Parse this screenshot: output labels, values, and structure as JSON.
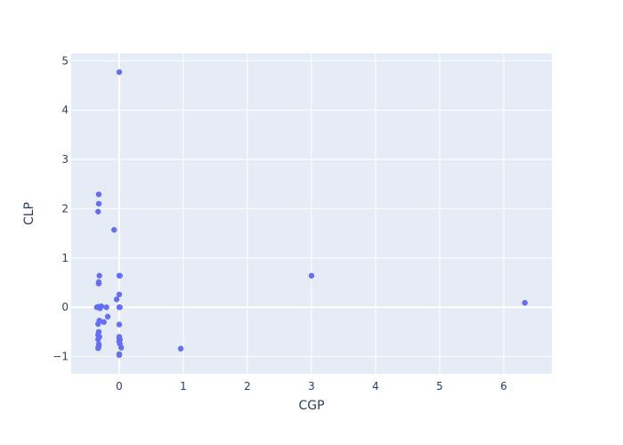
{
  "chart_data": {
    "type": "scatter",
    "xlabel": "CGP",
    "ylabel": "CLP",
    "xlim": [
      -0.75,
      6.75
    ],
    "ylim": [
      -1.35,
      5.15
    ],
    "x_ticks": [
      0,
      1,
      2,
      3,
      4,
      5,
      6
    ],
    "y_ticks": [
      -1,
      0,
      1,
      2,
      3,
      4,
      5
    ],
    "x_tick_labels": [
      "0",
      "1",
      "2",
      "3",
      "4",
      "5",
      "6"
    ],
    "y_tick_labels": [
      "−1",
      "0",
      "1",
      "2",
      "3",
      "4",
      "5"
    ],
    "grid": true,
    "colors": {
      "plot_bg": "#e5ecf6",
      "grid": "#ffffff",
      "marker": "#636efa",
      "text": "#2a3f5f"
    },
    "series": [
      {
        "points": [
          {
            "x": 0.0,
            "y": 4.77
          },
          {
            "x": -0.32,
            "y": 2.29
          },
          {
            "x": -0.32,
            "y": 2.1
          },
          {
            "x": -0.33,
            "y": 1.94
          },
          {
            "x": -0.08,
            "y": 1.57
          },
          {
            "x": -0.31,
            "y": 0.64
          },
          {
            "x": -0.32,
            "y": 0.51
          },
          {
            "x": -0.32,
            "y": 0.48
          },
          {
            "x": 0.0,
            "y": 0.64
          },
          {
            "x": 0.01,
            "y": 0.64
          },
          {
            "x": 0.0,
            "y": 0.26
          },
          {
            "x": -0.04,
            "y": 0.16
          },
          {
            "x": -0.33,
            "y": 0.01
          },
          {
            "x": -0.35,
            "y": 0.0
          },
          {
            "x": -0.3,
            "y": -0.02
          },
          {
            "x": -0.28,
            "y": 0.02
          },
          {
            "x": -0.2,
            "y": 0.0
          },
          {
            "x": 0.0,
            "y": 0.0
          },
          {
            "x": 0.01,
            "y": 0.0
          },
          {
            "x": -0.18,
            "y": -0.19
          },
          {
            "x": -0.31,
            "y": -0.27
          },
          {
            "x": -0.24,
            "y": -0.3
          },
          {
            "x": -0.33,
            "y": -0.34
          },
          {
            "x": 0.0,
            "y": -0.35
          },
          {
            "x": -0.32,
            "y": -0.5
          },
          {
            "x": -0.33,
            "y": -0.56
          },
          {
            "x": -0.31,
            "y": -0.6
          },
          {
            "x": -0.33,
            "y": -0.65
          },
          {
            "x": 0.0,
            "y": -0.6
          },
          {
            "x": 0.0,
            "y": -0.64
          },
          {
            "x": 0.01,
            "y": -0.66
          },
          {
            "x": 0.0,
            "y": -0.7
          },
          {
            "x": 0.01,
            "y": -0.74
          },
          {
            "x": -0.32,
            "y": -0.75
          },
          {
            "x": -0.32,
            "y": -0.8
          },
          {
            "x": -0.33,
            "y": -0.83
          },
          {
            "x": 0.03,
            "y": -0.82
          },
          {
            "x": 0.0,
            "y": -0.95
          },
          {
            "x": 0.0,
            "y": -0.97
          },
          {
            "x": 0.96,
            "y": -0.84
          },
          {
            "x": 3.0,
            "y": 0.64
          },
          {
            "x": 6.33,
            "y": 0.09
          }
        ]
      }
    ]
  }
}
